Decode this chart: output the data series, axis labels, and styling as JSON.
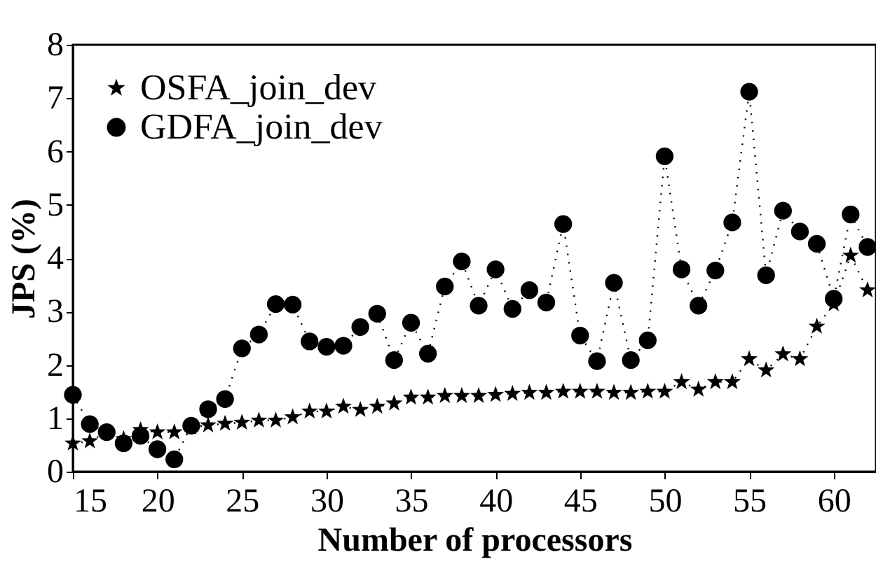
{
  "chart_data": {
    "type": "line",
    "xlabel": "Number of processors",
    "ylabel": "JPS (%)",
    "x": [
      15,
      16,
      17,
      18,
      19,
      20,
      21,
      22,
      23,
      24,
      25,
      26,
      27,
      28,
      29,
      30,
      31,
      32,
      33,
      34,
      35,
      36,
      37,
      38,
      39,
      40,
      41,
      42,
      43,
      44,
      45,
      46,
      47,
      48,
      49,
      50,
      51,
      52,
      53,
      54,
      55,
      56,
      57,
      58,
      59,
      60,
      61,
      62
    ],
    "series": [
      {
        "name": "OSFA_join_dev",
        "color": "#000000",
        "marker": "star",
        "line_style": "dotted",
        "values": [
          0.53,
          0.57,
          0.74,
          0.61,
          0.78,
          0.74,
          0.74,
          0.83,
          0.87,
          0.9,
          0.92,
          0.96,
          0.96,
          1.02,
          1.13,
          1.13,
          1.22,
          1.16,
          1.22,
          1.28,
          1.39,
          1.39,
          1.42,
          1.42,
          1.42,
          1.44,
          1.46,
          1.48,
          1.48,
          1.5,
          1.5,
          1.5,
          1.48,
          1.48,
          1.5,
          1.5,
          1.68,
          1.54,
          1.68,
          1.68,
          2.11,
          1.9,
          2.2,
          2.11,
          2.72,
          3.14,
          4.05,
          3.4
        ]
      },
      {
        "name": "GDFA_join_dev",
        "color": "#000000",
        "marker": "circle",
        "line_style": "dotted",
        "values": [
          1.44,
          0.89,
          0.74,
          0.53,
          0.67,
          0.42,
          0.23,
          0.86,
          1.17,
          1.36,
          2.31,
          2.57,
          3.14,
          3.13,
          2.44,
          2.34,
          2.36,
          2.71,
          2.96,
          2.09,
          2.79,
          2.21,
          3.47,
          3.94,
          3.11,
          3.79,
          3.05,
          3.4,
          3.17,
          4.64,
          2.55,
          2.07,
          3.54,
          2.09,
          2.46,
          5.91,
          3.79,
          3.11,
          3.77,
          4.67,
          7.12,
          3.68,
          4.89,
          4.5,
          4.27,
          3.24,
          4.82,
          4.21
        ]
      }
    ],
    "xlim": [
      15,
      62.5
    ],
    "xticks": [
      15,
      20,
      25,
      30,
      35,
      40,
      45,
      50,
      55,
      60
    ],
    "ylim": [
      0,
      8
    ],
    "yticks": [
      0,
      1,
      2,
      3,
      4,
      5,
      6,
      7,
      8
    ],
    "grid": false,
    "legend": "top left"
  }
}
